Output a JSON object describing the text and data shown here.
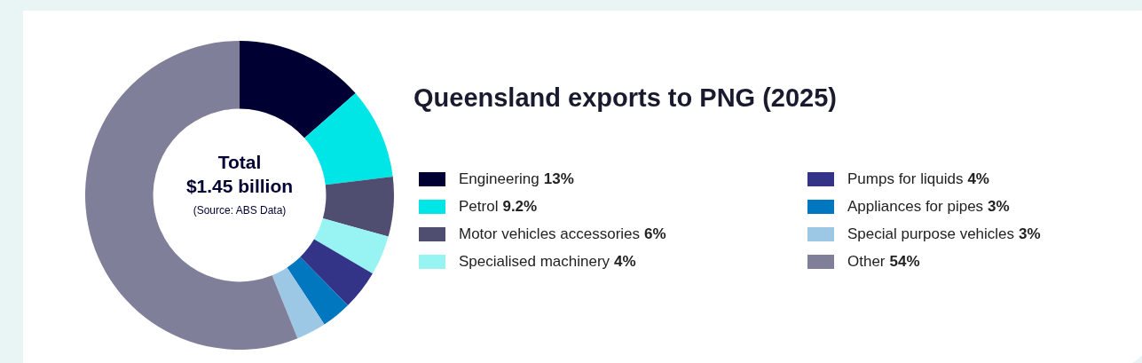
{
  "chart_data": {
    "type": "donut",
    "title": "Queensland exports to PNG (2025)",
    "categories": [
      "Engineering",
      "Petrol",
      "Motor vehicles accessories",
      "Specialised machinery",
      "Pumps for liquids",
      "Appliances for pipes",
      "Special purpose vehicles",
      "Other"
    ],
    "values": [
      13,
      9.2,
      6,
      4,
      4,
      3,
      3,
      54
    ],
    "value_labels": [
      "13%",
      "9.2%",
      "6%",
      "4%",
      "4%",
      "3%",
      "3%",
      "54%"
    ],
    "colors": [
      "#000033",
      "#00e5e5",
      "#4f4d70",
      "#98f3f3",
      "#333388",
      "#0077bf",
      "#9cc8e6",
      "#807f99"
    ],
    "annotations": [
      "Total",
      "$1.45 billion",
      "(Source: ABS Data)"
    ],
    "legend": "right"
  }
}
